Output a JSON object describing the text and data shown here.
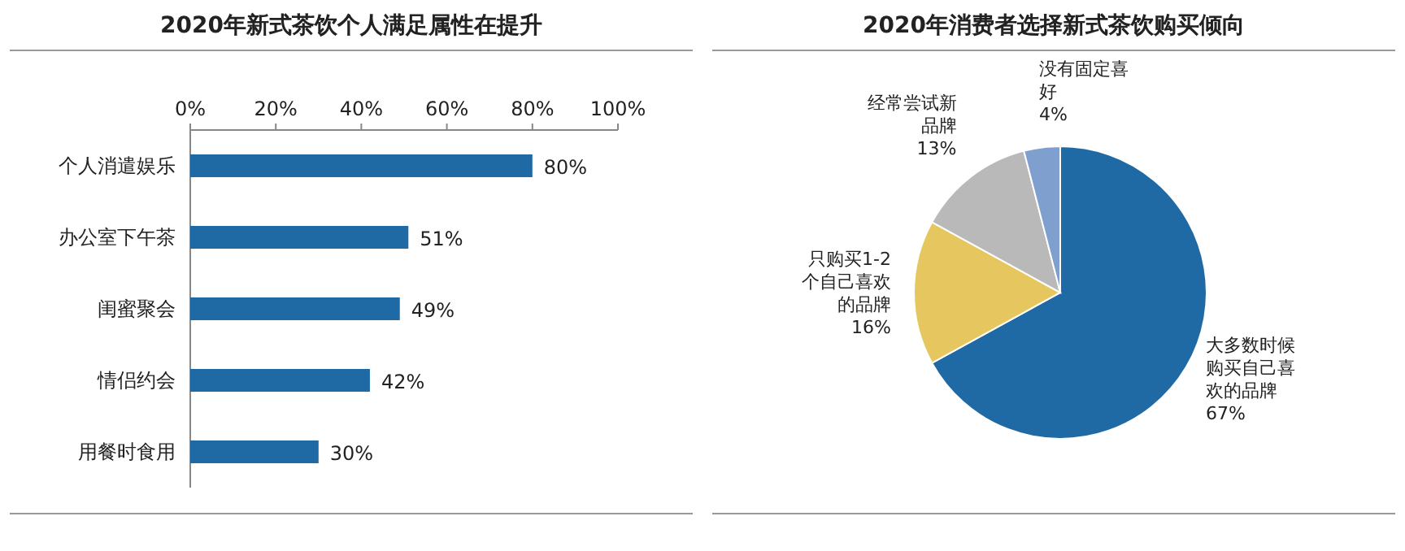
{
  "chart_data": [
    {
      "type": "bar",
      "orientation": "horizontal",
      "title": "2020年新式茶饮个人满足属性在提升",
      "categories": [
        "个人消遣娱乐",
        "办公室下午茶",
        "闺蜜聚会",
        "情侣约会",
        "用餐时食用"
      ],
      "values": [
        80,
        51,
        49,
        42,
        30
      ],
      "color": "#1f6aa5",
      "value_labels": [
        "80%",
        "51%",
        "49%",
        "42%",
        "30%"
      ],
      "xlim": [
        0,
        100
      ],
      "xticks": [
        {
          "value": 0,
          "label": "0%"
        },
        {
          "value": 20,
          "label": "20%"
        },
        {
          "value": 40,
          "label": "40%"
        },
        {
          "value": 60,
          "label": "60%"
        },
        {
          "value": 80,
          "label": "80%"
        },
        {
          "value": 100,
          "label": "100%"
        }
      ]
    },
    {
      "type": "pie",
      "title": "2020年消费者选择新式茶饮购买倾向",
      "categories": [
        "大多数时候购买自己喜欢的品牌",
        "只购买1-2个自己喜欢的品牌",
        "经常尝试新品牌",
        "没有固定喜好"
      ],
      "values": [
        67,
        16,
        13,
        4
      ],
      "colors": [
        "#1f6aa5",
        "#e6c75f",
        "#b9b9b9",
        "#7f9fcf"
      ],
      "value_labels": [
        "67%",
        "16%",
        "13%",
        "4%"
      ]
    }
  ]
}
